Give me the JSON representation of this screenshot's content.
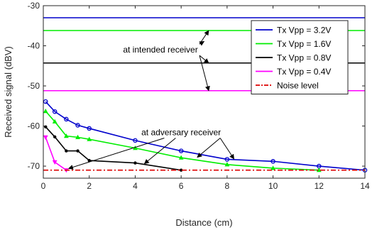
{
  "chart_data": {
    "type": "line",
    "title": "",
    "xlabel": "Distance (cm)",
    "ylabel": "Received signal (dBV)",
    "xlim": [
      0,
      14
    ],
    "ylim": [
      -73,
      -30
    ],
    "xticks": [
      0,
      2,
      4,
      6,
      8,
      10,
      12,
      14
    ],
    "yticks": [
      -30,
      -40,
      -50,
      -60,
      -70
    ],
    "grid": false,
    "legend_position": "top-right",
    "reference_lines": [
      {
        "name": "3.2V-intended",
        "y": -33.0,
        "color": "#0000cc"
      },
      {
        "name": "1.6V-intended",
        "y": -36.2,
        "color": "#00ee00"
      },
      {
        "name": "0.8V-intended",
        "y": -44.3,
        "color": "#000000"
      },
      {
        "name": "0.4V-intended",
        "y": -51.2,
        "color": "#ff00ff"
      }
    ],
    "series": [
      {
        "name": "Tx Vpp = 3.2V",
        "color": "#0000cc",
        "marker": "circle",
        "x": [
          0.1,
          0.5,
          1,
          1.5,
          2,
          4,
          6,
          8,
          10,
          12,
          14
        ],
        "y": [
          -53.9,
          -56.4,
          -58.3,
          -59.8,
          -60.6,
          -63.6,
          -66.2,
          -68.3,
          -68.8,
          -70.0,
          -71.0
        ]
      },
      {
        "name": "Tx Vpp = 1.6V",
        "color": "#00ee00",
        "marker": "triangle",
        "x": [
          0.1,
          0.5,
          1,
          1.5,
          2,
          4,
          6,
          8,
          10,
          12
        ],
        "y": [
          -56.3,
          -58.9,
          -62.5,
          -62.8,
          -63.3,
          -65.5,
          -67.9,
          -69.6,
          -70.5,
          -71.0
        ]
      },
      {
        "name": "Tx Vpp = 0.8V",
        "color": "#000000",
        "marker": "dot",
        "x": [
          0.1,
          0.5,
          1,
          1.5,
          2,
          4,
          6
        ],
        "y": [
          -60.2,
          -62.7,
          -66.2,
          -66.2,
          -68.6,
          -69.2,
          -71.0
        ]
      },
      {
        "name": "Tx Vpp = 0.4V",
        "color": "#ff00ff",
        "marker": "triangle-down",
        "x": [
          0.1,
          0.5,
          1
        ],
        "y": [
          -62.8,
          -69.0,
          -71.0
        ]
      },
      {
        "name": "Noise level",
        "color": "#dd0000",
        "marker": "none",
        "dash": "dashdot",
        "x": [
          0,
          14
        ],
        "y": [
          -71.0,
          -71.0
        ]
      }
    ],
    "annotations": [
      {
        "text": "at intended receiver",
        "x": 5.1,
        "y": -41.7,
        "arrows": [
          [
            7.2,
            -36.2
          ],
          [
            7.0,
            -38.9
          ],
          [
            7.2,
            -44.3
          ],
          [
            7.2,
            -51.2
          ]
        ]
      },
      {
        "text": "at adversary receiver",
        "x": 6.0,
        "y": -62.3,
        "arrows": [
          [
            8.3,
            -68.2
          ],
          [
            6.7,
            -67.8
          ],
          [
            4.4,
            -69.4
          ],
          [
            1.1,
            -70.6
          ]
        ]
      }
    ]
  }
}
